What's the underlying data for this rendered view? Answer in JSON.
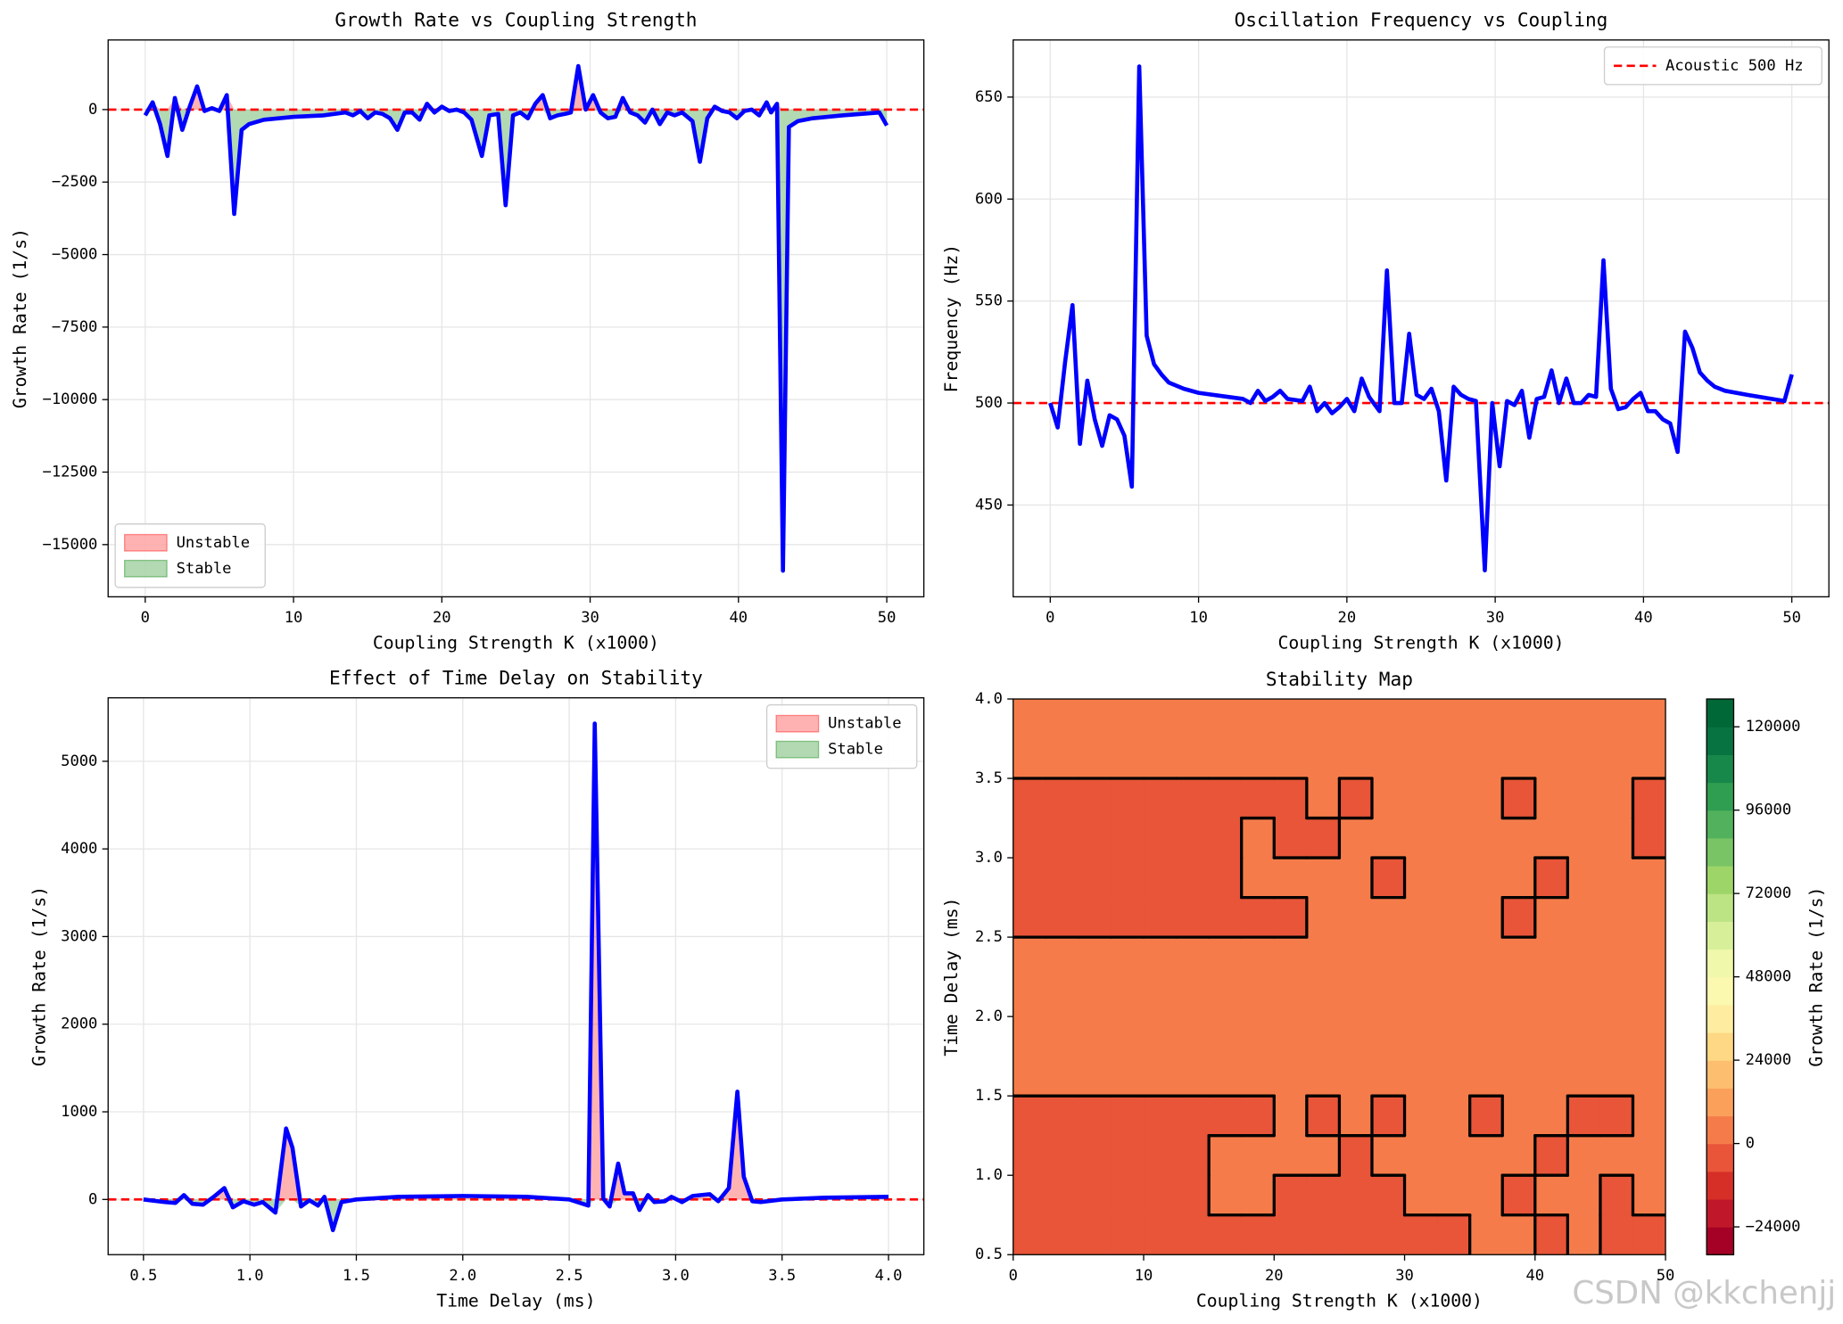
{
  "chart_data": [
    {
      "type": "line",
      "title": "Growth Rate vs Coupling Strength",
      "xlabel": "Coupling Strength K (x1000)",
      "ylabel": "Growth Rate (1/s)",
      "x": [
        0,
        0.5,
        1,
        1.5,
        2,
        2.5,
        3,
        3.5,
        4,
        4.5,
        5,
        5.5,
        6,
        6.5,
        7,
        8,
        9,
        10,
        12,
        13.5,
        14,
        14.5,
        15,
        15.5,
        16,
        16.5,
        17,
        17.5,
        18,
        18.5,
        19,
        19.5,
        20,
        20.5,
        21,
        21.5,
        22,
        22.7,
        23.2,
        23.8,
        24.3,
        24.8,
        25.3,
        25.8,
        26.3,
        26.8,
        27.3,
        27.8,
        28.3,
        28.7,
        29.2,
        29.7,
        30.2,
        30.7,
        31.2,
        31.7,
        32.2,
        32.7,
        33.2,
        33.7,
        34.2,
        34.7,
        35.2,
        35.7,
        36.2,
        36.9,
        37.4,
        37.9,
        38.4,
        38.9,
        39.4,
        39.9,
        40.4,
        40.9,
        41.4,
        41.9,
        42.2,
        42.6,
        43,
        43.4,
        44,
        45,
        47,
        49.5,
        50
      ],
      "series": [
        {
          "name": "Growth Rate",
          "color": "#0000ff",
          "values": [
            -200,
            250,
            -500,
            -1600,
            400,
            -700,
            100,
            800,
            -50,
            50,
            -50,
            500,
            -3600,
            -700,
            -500,
            -350,
            -300,
            -250,
            -200,
            -100,
            -200,
            -50,
            -300,
            -100,
            -150,
            -300,
            -700,
            -100,
            -100,
            -350,
            200,
            -100,
            100,
            -50,
            0,
            -100,
            -350,
            -1600,
            -200,
            -150,
            -3300,
            -200,
            -100,
            -300,
            200,
            500,
            -300,
            -200,
            -150,
            -100,
            1500,
            0,
            500,
            -100,
            -300,
            -250,
            400,
            -100,
            -200,
            -450,
            0,
            -500,
            -100,
            -200,
            -100,
            -400,
            -1800,
            -300,
            100,
            -50,
            -100,
            -300,
            -50,
            0,
            -200,
            250,
            -100,
            200,
            -15900,
            -600,
            -400,
            -300,
            -200,
            -100,
            -550
          ]
        }
      ],
      "fills": [
        {
          "name": "Unstable",
          "color": "#ff0000",
          "opacity": 0.3,
          "side": "positive"
        },
        {
          "name": "Stable",
          "color": "#008000",
          "opacity": 0.3,
          "side": "negative"
        }
      ],
      "hline": {
        "value": 0,
        "color": "#ff0000"
      },
      "xlim": [
        -2.5,
        52.5
      ],
      "xticks": [
        0,
        10,
        20,
        30,
        40,
        50
      ],
      "ylim": [
        -16800,
        2400
      ],
      "yticks": [
        0,
        {
          "value": -2500,
          "label": "−2500"
        },
        {
          "value": -5000,
          "label": "−5000"
        },
        {
          "value": -7500,
          "label": "−7500"
        },
        {
          "value": -10000,
          "label": "−10000"
        },
        {
          "value": -12500,
          "label": "−12500"
        },
        {
          "value": -15000,
          "label": "−15000"
        }
      ],
      "grid": true,
      "legend": "lower left"
    },
    {
      "type": "line",
      "title": "Oscillation Frequency vs Coupling",
      "xlabel": "Coupling Strength K (x1000)",
      "ylabel": "Frequency (Hz)",
      "x": [
        0,
        0.5,
        1,
        1.5,
        2,
        2.5,
        3,
        3.5,
        4,
        4.5,
        5,
        5.5,
        6,
        6.5,
        7,
        7.5,
        8,
        9,
        10,
        12,
        13,
        13.5,
        14,
        14.5,
        15,
        15.5,
        16,
        17,
        17.5,
        18,
        18.5,
        19,
        19.5,
        20,
        20.5,
        21,
        21.5,
        22.2,
        22.7,
        23.2,
        23.7,
        24.2,
        24.7,
        25.2,
        25.7,
        26.2,
        26.7,
        27.2,
        27.7,
        28.2,
        28.7,
        29.3,
        29.8,
        30.3,
        30.8,
        31.3,
        31.8,
        32.3,
        32.8,
        33.3,
        33.8,
        34.3,
        34.8,
        35.3,
        35.8,
        36.3,
        36.8,
        37.3,
        37.8,
        38.3,
        38.8,
        39.3,
        39.8,
        40.3,
        40.8,
        41.3,
        41.8,
        42.3,
        42.8,
        43.3,
        43.8,
        44.3,
        44.8,
        45.5,
        47,
        49.5,
        50
      ],
      "series": [
        {
          "name": "Frequency",
          "color": "#0000ff",
          "values": [
            500,
            488,
            520,
            548,
            480,
            511,
            492,
            479,
            494,
            492,
            484,
            459,
            665,
            533,
            519,
            514,
            510,
            507,
            505,
            503,
            502,
            500,
            506,
            501,
            503,
            506,
            502,
            501,
            508,
            496,
            500,
            495,
            498,
            502,
            496,
            512,
            503,
            496,
            565,
            500,
            500,
            534,
            504,
            502,
            507,
            496,
            462,
            508,
            504,
            502,
            501,
            418,
            500,
            469,
            501,
            499,
            506,
            483,
            502,
            503,
            516,
            500,
            512,
            500,
            500,
            504,
            503,
            570,
            507,
            497,
            498,
            502,
            505,
            496,
            496,
            492,
            490,
            476,
            535,
            527,
            515,
            511,
            508,
            506,
            504,
            501,
            514
          ]
        }
      ],
      "hline": {
        "value": 500,
        "color": "#ff0000",
        "name": "Acoustic 500 Hz"
      },
      "xlim": [
        -2.5,
        52.5
      ],
      "xticks": [
        0,
        10,
        20,
        30,
        40,
        50
      ],
      "ylim": [
        405,
        678
      ],
      "yticks": [
        450,
        500,
        550,
        600,
        650
      ],
      "grid": true,
      "legend": "upper right"
    },
    {
      "type": "line",
      "title": "Effect of Time Delay on Stability",
      "xlabel": "Time Delay (ms)",
      "ylabel": "Growth Rate (1/s)",
      "x": [
        0.5,
        0.6,
        0.65,
        0.69,
        0.73,
        0.78,
        0.83,
        0.88,
        0.92,
        0.97,
        1.02,
        1.06,
        1.12,
        1.17,
        1.2,
        1.24,
        1.28,
        1.32,
        1.35,
        1.39,
        1.43,
        1.5,
        1.7,
        2.0,
        2.3,
        2.5,
        2.59,
        2.62,
        2.66,
        2.69,
        2.73,
        2.76,
        2.8,
        2.83,
        2.87,
        2.9,
        2.95,
        2.98,
        3.03,
        3.08,
        3.12,
        3.16,
        3.2,
        3.25,
        3.29,
        3.32,
        3.36,
        3.4,
        3.5,
        3.7,
        4.0
      ],
      "series": [
        {
          "name": "Growth Rate",
          "color": "#0000ff",
          "values": [
            0,
            -30,
            -40,
            50,
            -50,
            -60,
            30,
            130,
            -90,
            -20,
            -60,
            -30,
            -150,
            810,
            590,
            -80,
            -10,
            -70,
            30,
            -350,
            -30,
            0,
            30,
            40,
            30,
            0,
            -70,
            5430,
            10,
            -80,
            410,
            70,
            70,
            -120,
            50,
            -30,
            -20,
            30,
            -30,
            40,
            50,
            60,
            -20,
            130,
            1230,
            260,
            -20,
            -30,
            0,
            20,
            30
          ]
        }
      ],
      "fills": [
        {
          "name": "Unstable",
          "color": "#ff0000",
          "opacity": 0.3,
          "side": "positive"
        },
        {
          "name": "Stable",
          "color": "#008000",
          "opacity": 0.3,
          "side": "negative"
        }
      ],
      "hline": {
        "value": 0,
        "color": "#ff0000"
      },
      "xlim": [
        0.334,
        4.166
      ],
      "xticks": [
        0.5,
        {
          "value": 1,
          "label": "1.0"
        },
        1.5,
        {
          "value": 2,
          "label": "2.0"
        },
        2.5,
        {
          "value": 3,
          "label": "3.0"
        },
        3.5,
        {
          "value": 4,
          "label": "4.0"
        }
      ],
      "ylim": [
        -630,
        5724
      ],
      "yticks": [
        0,
        1000,
        2000,
        3000,
        4000,
        5000
      ],
      "grid": true,
      "legend": "upper right"
    },
    {
      "type": "contour",
      "title": "Stability Map",
      "xlabel": "Coupling Strength K (x1000)",
      "ylabel": "Time Delay (ms)",
      "colorbar_label": "Growth Rate (1/s)",
      "x": [
        0,
        2.5,
        5,
        7.5,
        10,
        12.5,
        15,
        17.5,
        20,
        22.5,
        25,
        27.5,
        30,
        32.5,
        35,
        37.5,
        40,
        42.5,
        45,
        47.5,
        50
      ],
      "y": [
        0.5,
        0.75,
        1,
        1.25,
        1.5,
        1.75,
        2,
        2.25,
        2.5,
        2.75,
        3,
        3.25,
        3.5,
        3.75,
        4
      ],
      "z": [
        [
          -4000,
          -4000,
          -4000,
          -4000,
          -4000,
          -4000,
          -4000,
          -4000,
          -4000,
          -4000,
          -4000,
          -4000,
          -4000,
          -4000,
          2000,
          2000,
          -4000,
          2000,
          -4000,
          -4000
        ],
        [
          -4000,
          -4000,
          -4000,
          -4000,
          -4000,
          -4000,
          2000,
          2000,
          -4000,
          -4000,
          -4000,
          -4000,
          2000,
          2000,
          2000,
          -4000,
          2000,
          2000,
          -4000,
          2000
        ],
        [
          -4000,
          -4000,
          -4000,
          -4000,
          -4000,
          -4000,
          2000,
          2000,
          2000,
          2000,
          -4000,
          2000,
          2000,
          2000,
          2000,
          2000,
          -4000,
          2000,
          2000,
          2000
        ],
        [
          -4000,
          -4000,
          -4000,
          -4000,
          -4000,
          -4000,
          -4000,
          -4000,
          2000,
          -4000,
          2000,
          -4000,
          2000,
          2000,
          -4000,
          2000,
          2000,
          -4000,
          -4000,
          2000
        ],
        [
          2000,
          2000,
          2000,
          2000,
          2000,
          2000,
          2000,
          2000,
          2000,
          2000,
          2000,
          2000,
          2000,
          2000,
          2000,
          2000,
          2000,
          2000,
          2000,
          2000
        ],
        [
          2000,
          2000,
          2000,
          2000,
          2000,
          2000,
          2000,
          2000,
          2000,
          2000,
          2000,
          2000,
          2000,
          2000,
          2000,
          2000,
          2000,
          2000,
          2000,
          2000
        ],
        [
          2000,
          2000,
          2000,
          2000,
          2000,
          2000,
          2000,
          2000,
          2000,
          2000,
          2000,
          2000,
          2000,
          2000,
          2000,
          2000,
          2000,
          2000,
          2000,
          2000
        ],
        [
          2000,
          2000,
          2000,
          2000,
          2000,
          2000,
          2000,
          2000,
          2000,
          2000,
          2000,
          2000,
          2000,
          2000,
          2000,
          2000,
          2000,
          2000,
          2000,
          2000
        ],
        [
          -4000,
          -4000,
          -4000,
          -4000,
          -4000,
          -4000,
          -4000,
          -4000,
          -4000,
          2000,
          2000,
          2000,
          2000,
          2000,
          2000,
          -4000,
          2000,
          2000,
          2000,
          2000
        ],
        [
          -4000,
          -4000,
          -4000,
          -4000,
          -4000,
          -4000,
          -4000,
          2000,
          2000,
          2000,
          2000,
          -4000,
          2000,
          2000,
          2000,
          2000,
          -4000,
          2000,
          2000,
          2000
        ],
        [
          -4000,
          -4000,
          -4000,
          -4000,
          -4000,
          -4000,
          -4000,
          2000,
          -4000,
          -4000,
          2000,
          2000,
          2000,
          2000,
          2000,
          2000,
          2000,
          2000,
          2000,
          -4000
        ],
        [
          -4000,
          -4000,
          -4000,
          -4000,
          -4000,
          -4000,
          -4000,
          -4000,
          -4000,
          2000,
          -4000,
          2000,
          2000,
          2000,
          2000,
          -4000,
          2000,
          2000,
          2000,
          -4000
        ],
        [
          2000,
          2000,
          2000,
          2000,
          2000,
          2000,
          2000,
          2000,
          2000,
          2000,
          2000,
          2000,
          2000,
          2000,
          2000,
          2000,
          2000,
          2000,
          2000,
          2000
        ],
        [
          2000,
          2000,
          2000,
          2000,
          2000,
          2000,
          2000,
          2000,
          2000,
          2000,
          2000,
          2000,
          2000,
          2000,
          2000,
          2000,
          2000,
          2000,
          2000,
          2000
        ]
      ],
      "levels": [
        -32000,
        -24000,
        -16000,
        -8000,
        0,
        8000,
        16000,
        24000,
        32000,
        40000,
        48000,
        56000,
        64000,
        72000,
        80000,
        88000,
        96000,
        104000,
        112000,
        120000,
        128000
      ],
      "colors": [
        "#a50026",
        "#c0182a",
        "#d62f27",
        "#e85538",
        "#f57c4a",
        "#fba05b",
        "#fdbf6f",
        "#fed884",
        "#feeda1",
        "#fbf8b0",
        "#eff8ab",
        "#d8ef9a",
        "#bce384",
        "#9dd569",
        "#79c465",
        "#52b15c",
        "#2f9e51",
        "#18884a",
        "#077340",
        "#006837"
      ],
      "xlim": [
        0,
        50
      ],
      "xticks": [
        0,
        10,
        20,
        30,
        40,
        50
      ],
      "ylim": [
        0.5,
        4
      ],
      "yticks": [
        0.5,
        {
          "value": 1,
          "label": "1.0"
        },
        1.5,
        {
          "value": 2,
          "label": "2.0"
        },
        2.5,
        {
          "value": 3,
          "label": "3.0"
        },
        3.5,
        {
          "value": 4,
          "label": "4.0"
        }
      ],
      "cticks": [
        {
          "value": -24000,
          "label": "−24000"
        },
        0,
        24000,
        48000,
        72000,
        96000,
        120000
      ]
    }
  ],
  "watermark": "CSDN @kkchenjj"
}
